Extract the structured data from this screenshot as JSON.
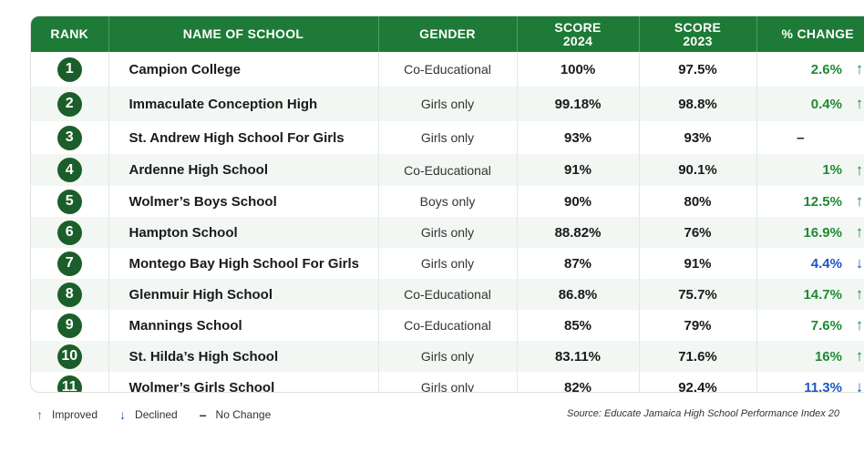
{
  "headers": {
    "rank": "RANK",
    "name": "NAME OF SCHOOL",
    "gender": "GENDER",
    "score2024_l1": "SCORE",
    "score2024_l2": "2024",
    "score2023_l1": "SCORE",
    "score2023_l2": "2023",
    "change": "% CHANGE"
  },
  "rows": [
    {
      "rank": "1",
      "name": "Campion College",
      "gender": "Co-Educational",
      "s2024": "100%",
      "s2023": "97.5%",
      "change": "2.6%",
      "dir": "up"
    },
    {
      "rank": "2",
      "name": "Immaculate Conception High",
      "gender": "Girls only",
      "s2024": "99.18%",
      "s2023": "98.8%",
      "change": "0.4%",
      "dir": "up"
    },
    {
      "rank": "3",
      "name": "St. Andrew High School For Girls",
      "gender": "Girls only",
      "s2024": "93%",
      "s2023": "93%",
      "change": "–",
      "dir": "same"
    },
    {
      "rank": "4",
      "name": "Ardenne High School",
      "gender": "Co-Educational",
      "s2024": "91%",
      "s2023": "90.1%",
      "change": "1%",
      "dir": "up"
    },
    {
      "rank": "5",
      "name": "Wolmer’s Boys School",
      "gender": "Boys only",
      "s2024": "90%",
      "s2023": "80%",
      "change": "12.5%",
      "dir": "up"
    },
    {
      "rank": "6",
      "name": "Hampton School",
      "gender": "Girls only",
      "s2024": "88.82%",
      "s2023": "76%",
      "change": "16.9%",
      "dir": "up"
    },
    {
      "rank": "7",
      "name": "Montego Bay High School For Girls",
      "gender": "Girls only",
      "s2024": "87%",
      "s2023": "91%",
      "change": "4.4%",
      "dir": "down"
    },
    {
      "rank": "8",
      "name": "Glenmuir High School",
      "gender": "Co-Educational",
      "s2024": "86.8%",
      "s2023": "75.7%",
      "change": "14.7%",
      "dir": "up"
    },
    {
      "rank": "9",
      "name": "Mannings School",
      "gender": "Co-Educational",
      "s2024": "85%",
      "s2023": "79%",
      "change": "7.6%",
      "dir": "up"
    },
    {
      "rank": "10",
      "name": "St. Hilda’s High School",
      "gender": "Girls only",
      "s2024": "83.11%",
      "s2023": "71.6%",
      "change": "16%",
      "dir": "up"
    },
    {
      "rank": "11",
      "name": "Wolmer’s Girls School",
      "gender": "Girls only",
      "s2024": "82%",
      "s2023": "92.4%",
      "change": "11.3%",
      "dir": "down"
    }
  ],
  "legend": {
    "improved": "Improved",
    "declined": "Declined",
    "no_change": "No Change"
  },
  "source": "Source: Educate Jamaica High School Performance Index 20",
  "colors": {
    "header": "#1e7a37",
    "badge": "#1b5e2b",
    "up": "#1e8a34",
    "down": "#1d57c4"
  },
  "icons": {
    "up": "arrow-up-icon",
    "down": "arrow-down-icon",
    "same": "dash-icon"
  }
}
